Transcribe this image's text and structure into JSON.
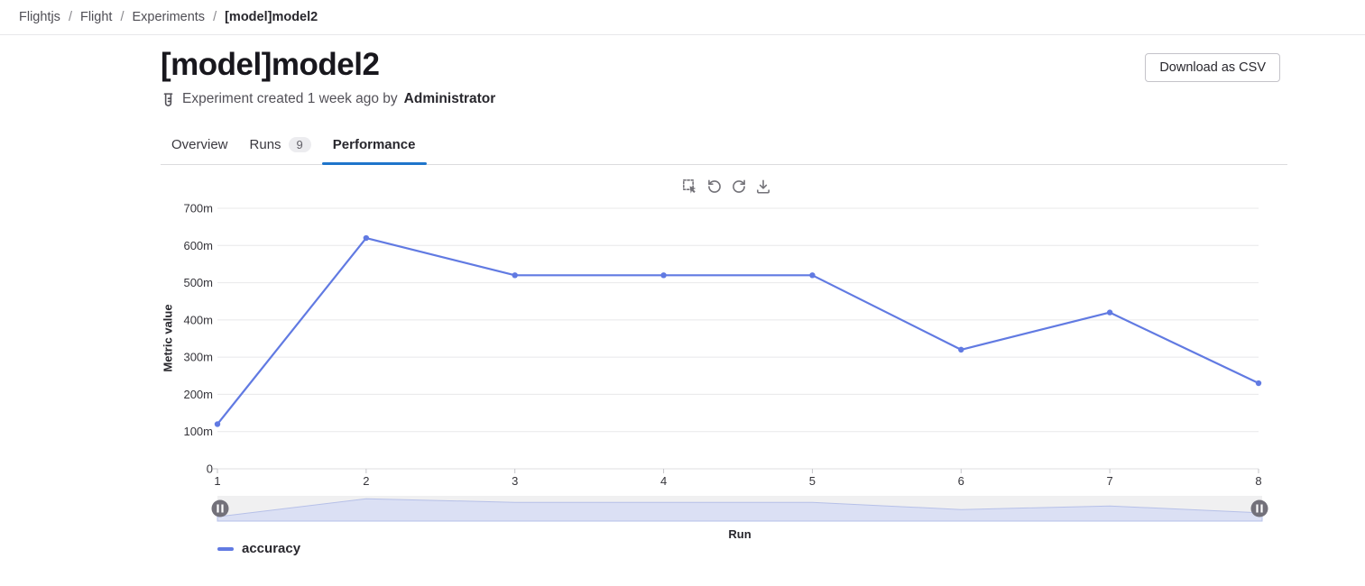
{
  "breadcrumb": {
    "separator": "/",
    "items": [
      "Flightjs",
      "Flight",
      "Experiments",
      "[model]model2"
    ]
  },
  "header": {
    "title": "[model]model2",
    "meta_text": "Experiment created 1 week ago by",
    "meta_author": "Administrator",
    "download_button_label": "Download as CSV",
    "meta_icon": "test-tube-icon"
  },
  "tabs": [
    {
      "label": "Overview",
      "badge": "",
      "active": false
    },
    {
      "label": "Runs",
      "badge": "9",
      "active": false
    },
    {
      "label": "Performance",
      "badge": "",
      "active": true
    }
  ],
  "chart_toolbar": {
    "icons": [
      "marquee-selection-icon",
      "undo-icon",
      "redo-icon",
      "download-icon"
    ]
  },
  "chart_data": {
    "type": "line",
    "title": "",
    "xlabel": "Run",
    "ylabel": "Metric value",
    "x": [
      1,
      2,
      3,
      4,
      5,
      6,
      7,
      8
    ],
    "x_tick_labels": [
      "1",
      "2",
      "3",
      "4",
      "5",
      "6",
      "7",
      "8"
    ],
    "series": [
      {
        "name": "accuracy",
        "color": "#617ae2",
        "values": [
          0.12,
          0.62,
          0.52,
          0.52,
          0.52,
          0.32,
          0.42,
          0.23
        ]
      }
    ],
    "ylim": [
      0,
      0.7
    ],
    "y_ticks": [
      {
        "value": 0.7,
        "label": "700m"
      },
      {
        "value": 0.6,
        "label": "600m"
      },
      {
        "value": 0.5,
        "label": "500m"
      },
      {
        "value": 0.4,
        "label": "400m"
      },
      {
        "value": 0.3,
        "label": "300m"
      },
      {
        "value": 0.2,
        "label": "200m"
      },
      {
        "value": 0.1,
        "label": "100m"
      },
      {
        "value": 0.0,
        "label": "0"
      }
    ],
    "grid": true,
    "legend_position": "bottom-left",
    "datazoom_slider": {
      "enabled": true,
      "range": "full"
    }
  },
  "colors": {
    "series_line": "#617ae2",
    "tab_active_underline": "#1f75cb",
    "gridline": "#e8e8ea",
    "axis_line": "#dfdfe2",
    "slider_track": "#f0f0f1",
    "slider_area_fill": "#dbe0f4",
    "slider_area_line": "#b6c0e8",
    "slider_handle": "#73717a",
    "toolbar_icon": "#737278",
    "badge_bg": "#ececef"
  }
}
